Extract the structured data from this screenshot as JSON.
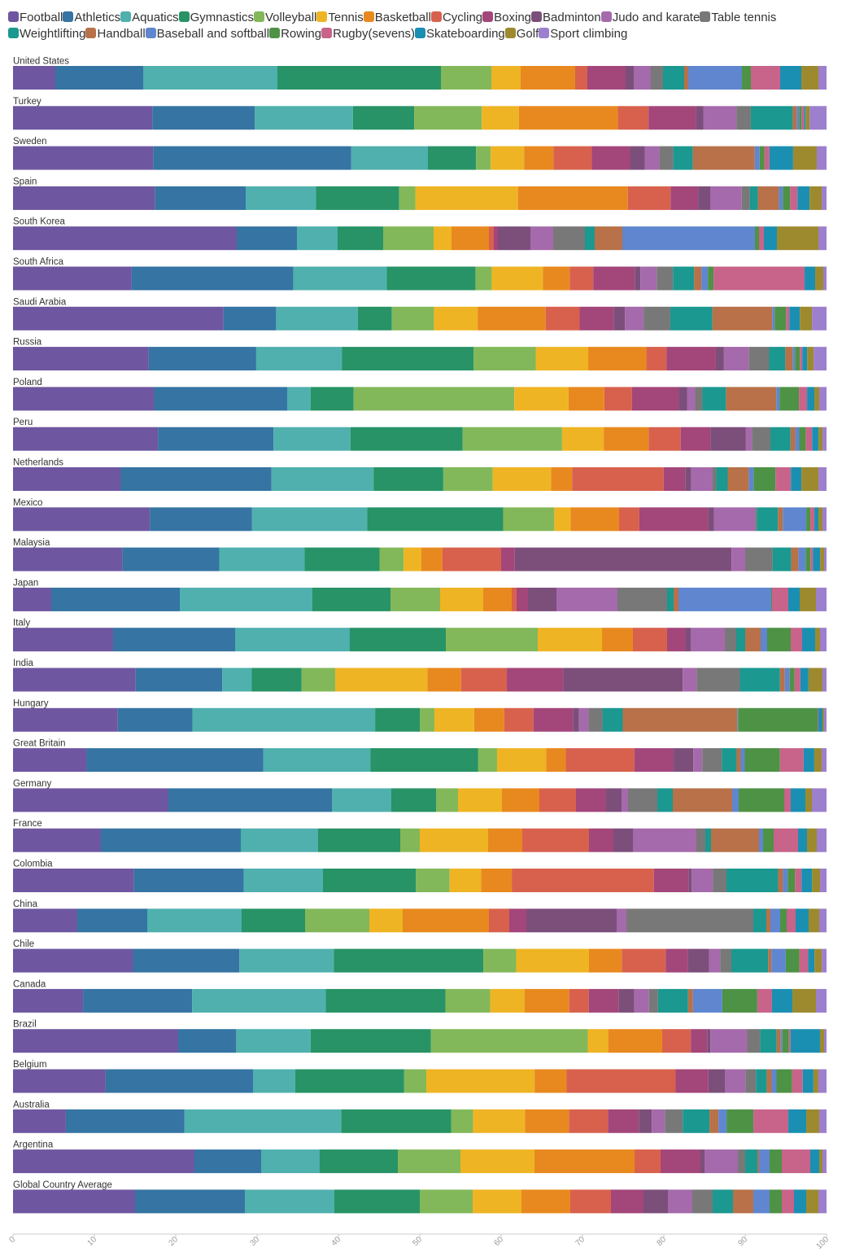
{
  "chart_data": {
    "type": "bar",
    "orientation": "horizontal",
    "stacked": true,
    "title": "",
    "xlabel": "",
    "ylabel": "",
    "xlim": [
      0,
      100
    ],
    "x_ticks": [
      "0",
      "10",
      "20",
      "30",
      "40",
      "50",
      "60",
      "70",
      "80",
      "90",
      "100"
    ],
    "grid": false,
    "legend_position": "top",
    "series": [
      {
        "name": "Football",
        "color": "#6e57a0"
      },
      {
        "name": "Athletics",
        "color": "#3574a3"
      },
      {
        "name": "Aquatics",
        "color": "#4fb0ae"
      },
      {
        "name": "Gymnastics",
        "color": "#279366"
      },
      {
        "name": "Volleyball",
        "color": "#82b85a"
      },
      {
        "name": "Tennis",
        "color": "#efb424"
      },
      {
        "name": "Basketball",
        "color": "#e8891f"
      },
      {
        "name": "Cycling",
        "color": "#d8614d"
      },
      {
        "name": "Boxing",
        "color": "#a3467a"
      },
      {
        "name": "Badminton",
        "color": "#7c4f7b"
      },
      {
        "name": "Judo and karate",
        "color": "#a56aab"
      },
      {
        "name": "Table tennis",
        "color": "#787878"
      },
      {
        "name": "Weightlifting",
        "color": "#1b9890"
      },
      {
        "name": "Handball",
        "color": "#b87148"
      },
      {
        "name": "Baseball and softball",
        "color": "#5f86cf"
      },
      {
        "name": "Rowing",
        "color": "#4e9245"
      },
      {
        "name": "Rugby(sevens)",
        "color": "#c8638a"
      },
      {
        "name": "Skateboarding",
        "color": "#1a8fb2"
      },
      {
        "name": "Golf",
        "color": "#9d8a2e"
      },
      {
        "name": "Sport climbing",
        "color": "#9c7fcd"
      }
    ],
    "categories": [
      "United States",
      "Turkey",
      "Sweden",
      "Spain",
      "South Korea",
      "South Africa",
      "Saudi Arabia",
      "Russia",
      "Poland",
      "Peru",
      "Netherlands",
      "Mexico",
      "Malaysia",
      "Japan",
      "Italy",
      "India",
      "Hungary",
      "Great Britain",
      "Germany",
      "France",
      "Colombia",
      "China",
      "Chile",
      "Canada",
      "Brazil",
      "Belgium",
      "Australia",
      "Argentina",
      "Global Country Average"
    ],
    "values": [
      [
        5.2,
        10.8,
        16.5,
        20.1,
        6.2,
        3.6,
        6.7,
        1.5,
        4.7,
        1.0,
        2.1,
        1.5,
        2.6,
        0.5,
        6.6,
        1.1,
        3.6,
        2.6,
        2.1,
        1.0
      ],
      [
        17.3,
        12.7,
        12.2,
        7.6,
        8.4,
        4.6,
        12.3,
        3.8,
        5.9,
        0.9,
        4.1,
        1.8,
        5.2,
        0.5,
        0.3,
        0.3,
        0.3,
        0.2,
        0.5,
        2.1
      ],
      [
        17.2,
        24.3,
        9.4,
        5.9,
        1.8,
        4.1,
        3.6,
        4.7,
        4.7,
        1.8,
        1.8,
        1.7,
        2.4,
        7.6,
        0.6,
        0.6,
        0.6,
        2.9,
        2.9,
        1.2
      ],
      [
        17.6,
        11.2,
        8.7,
        10.3,
        2.0,
        12.7,
        13.6,
        5.3,
        3.4,
        1.5,
        3.9,
        1.0,
        1.0,
        2.6,
        0.5,
        0.9,
        0.9,
        1.5,
        1.5,
        0.6
      ],
      [
        27.5,
        7.4,
        5.0,
        5.6,
        6.2,
        2.2,
        4.6,
        0.6,
        0.5,
        4.0,
        2.8,
        3.9,
        1.2,
        3.4,
        16.3,
        0.5,
        0.6,
        1.6,
        5.1,
        1.0
      ],
      [
        14.6,
        19.9,
        11.5,
        10.9,
        2.0,
        6.3,
        3.3,
        2.9,
        5.1,
        0.7,
        2.0,
        2.0,
        2.6,
        0.9,
        0.8,
        0.7,
        11.2,
        1.3,
        1.0,
        0.4
      ],
      [
        26.0,
        6.5,
        10.1,
        4.2,
        5.2,
        5.4,
        8.4,
        4.2,
        4.2,
        1.4,
        2.3,
        3.3,
        5.2,
        7.4,
        0.3,
        1.4,
        0.4,
        1.3,
        1.5,
        1.8
      ],
      [
        16.8,
        13.3,
        10.6,
        16.3,
        7.7,
        6.5,
        7.2,
        2.5,
        6.1,
        1.0,
        3.1,
        2.5,
        2.0,
        0.9,
        0.3,
        0.6,
        0.3,
        0.6,
        0.8,
        1.6
      ],
      [
        17.4,
        16.4,
        2.9,
        5.3,
        19.8,
        6.7,
        4.4,
        3.4,
        5.8,
        1.0,
        1.0,
        0.9,
        2.9,
        6.2,
        0.4,
        2.4,
        1.0,
        0.9,
        0.6,
        0.9
      ],
      [
        18.1,
        14.4,
        9.6,
        14.0,
        12.4,
        5.2,
        5.6,
        4.0,
        3.7,
        4.4,
        0.8,
        2.3,
        2.5,
        0.6,
        0.5,
        0.8,
        0.8,
        0.8,
        0.5,
        0.5
      ],
      [
        13.3,
        18.6,
        12.6,
        8.6,
        6.1,
        7.2,
        2.6,
        11.3,
        2.7,
        0.7,
        2.6,
        0.5,
        1.4,
        2.6,
        0.6,
        2.7,
        1.9,
        1.3,
        2.1,
        1.0
      ],
      [
        16.9,
        12.6,
        14.2,
        16.8,
        6.3,
        2.0,
        6.0,
        2.5,
        8.5,
        0.7,
        5.1,
        0.2,
        2.6,
        0.6,
        2.9,
        0.5,
        0.5,
        0.5,
        0.5,
        0.5
      ],
      [
        13.6,
        12.0,
        10.6,
        9.3,
        3.0,
        2.2,
        2.6,
        7.3,
        1.7,
        26.9,
        1.7,
        3.4,
        2.3,
        0.9,
        0.9,
        0.6,
        0.3,
        0.9,
        0.5,
        0.3
      ],
      [
        4.7,
        15.8,
        16.3,
        9.6,
        6.1,
        5.3,
        3.5,
        0.6,
        1.4,
        3.5,
        7.5,
        6.1,
        0.8,
        0.6,
        11.4,
        0.1,
        2.0,
        1.4,
        2.0,
        1.3
      ],
      [
        12.3,
        15.0,
        14.1,
        11.8,
        11.3,
        7.9,
        3.8,
        4.2,
        2.3,
        0.6,
        4.2,
        1.4,
        1.1,
        1.9,
        0.8,
        2.9,
        1.4,
        1.6,
        0.6,
        0.8
      ],
      [
        15.0,
        10.6,
        3.6,
        6.1,
        4.1,
        11.3,
        4.1,
        5.6,
        6.9,
        14.6,
        1.7,
        5.3,
        4.9,
        0.6,
        0.6,
        0.6,
        0.7,
        1.0,
        1.7,
        0.5
      ],
      [
        12.9,
        9.2,
        22.5,
        5.5,
        1.8,
        4.9,
        3.7,
        3.6,
        4.9,
        0.7,
        1.2,
        1.7,
        2.5,
        14.1,
        0.1,
        9.8,
        0.1,
        0.5,
        0.2,
        0.3
      ],
      [
        9.0,
        21.6,
        13.1,
        13.2,
        2.3,
        6.0,
        2.4,
        8.4,
        4.8,
        2.4,
        1.1,
        2.4,
        1.8,
        0.5,
        0.5,
        4.3,
        2.9,
        1.3,
        0.9,
        0.6
      ],
      [
        19.1,
        20.1,
        7.3,
        5.5,
        2.7,
        5.4,
        4.6,
        4.5,
        3.7,
        1.9,
        0.8,
        3.6,
        1.9,
        7.3,
        0.8,
        5.6,
        0.8,
        1.8,
        0.8,
        1.8
      ],
      [
        10.8,
        17.2,
        9.5,
        10.1,
        2.4,
        8.4,
        4.2,
        8.2,
        3.0,
        2.4,
        7.8,
        1.1,
        0.7,
        5.9,
        0.5,
        1.3,
        3.0,
        1.1,
        1.2,
        1.2
      ],
      [
        15.0,
        13.6,
        9.8,
        11.5,
        4.2,
        3.9,
        3.8,
        17.6,
        4.3,
        0.4,
        2.6,
        1.7,
        6.4,
        0.6,
        0.6,
        0.9,
        0.8,
        1.3,
        1.0,
        0.8
      ],
      [
        7.9,
        8.6,
        11.6,
        7.8,
        7.9,
        4.1,
        10.6,
        2.5,
        2.1,
        11.1,
        1.2,
        15.6,
        1.6,
        0.5,
        1.2,
        0.8,
        1.1,
        1.6,
        1.3,
        0.9
      ],
      [
        15.0,
        13.3,
        11.8,
        18.7,
        4.1,
        9.1,
        4.1,
        5.5,
        2.8,
        2.6,
        1.4,
        1.4,
        4.6,
        0.4,
        1.8,
        1.7,
        1.1,
        0.8,
        0.9,
        0.6
      ],
      [
        8.6,
        13.4,
        16.4,
        14.7,
        5.5,
        4.2,
        5.5,
        2.4,
        3.7,
        1.9,
        1.8,
        1.1,
        3.7,
        0.6,
        3.6,
        4.3,
        1.8,
        2.5,
        2.9,
        1.3
      ],
      [
        20.2,
        7.1,
        9.1,
        14.7,
        19.2,
        2.5,
        6.6,
        3.5,
        2.0,
        0.4,
        4.5,
        1.6,
        2.0,
        0.5,
        0.2,
        0.8,
        0.2,
        3.6,
        0.5,
        0.3
      ],
      [
        11.3,
        18.0,
        5.1,
        13.3,
        2.7,
        13.2,
        3.9,
        13.3,
        4.0,
        2.0,
        2.5,
        1.3,
        1.3,
        0.6,
        0.6,
        1.9,
        1.3,
        1.3,
        0.6,
        1.0
      ],
      [
        6.5,
        14.6,
        19.3,
        13.5,
        2.7,
        6.4,
        5.4,
        4.8,
        3.8,
        1.6,
        1.6,
        2.2,
        3.3,
        1.1,
        1.0,
        3.3,
        4.3,
        2.2,
        1.6,
        0.9
      ],
      [
        22.3,
        8.2,
        7.2,
        9.6,
        7.7,
        9.1,
        12.3,
        3.2,
        4.9,
        0.5,
        4.1,
        0.9,
        1.5,
        0.2,
        1.3,
        1.5,
        3.5,
        1.1,
        0.4,
        0.5
      ],
      [
        15.0,
        13.5,
        11.0,
        10.5,
        6.5,
        6.0,
        6.0,
        5.0,
        4.0,
        3.0,
        3.0,
        2.5,
        2.5,
        2.5,
        2.0,
        1.5,
        1.5,
        1.5,
        1.5,
        1.0
      ]
    ]
  }
}
